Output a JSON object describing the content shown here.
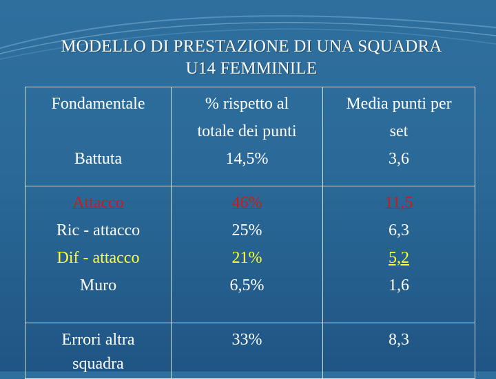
{
  "title": {
    "line1": "MODELLO DI PRESTAZIONE DI UNA SQUADRA",
    "line2": "U14 FEMMINILE"
  },
  "table": {
    "header": {
      "col1": "Fondamentale",
      "col2_line1": "% rispetto al",
      "col2_line2": "totale dei punti",
      "col3_line1": "Media punti per",
      "col3_line2": "set"
    },
    "battuta": {
      "label": "Battuta",
      "percent": "14,5%",
      "media": "3,6"
    },
    "attacco_group": [
      {
        "label": "Attacco",
        "percent": "46%",
        "media": "11,5"
      },
      {
        "label": "Ric - attacco",
        "percent": "25%",
        "media": "6,3"
      },
      {
        "label": "Dif - attacco",
        "percent": "21%",
        "media": "5,2"
      },
      {
        "label": "Muro",
        "percent": "6,5%",
        "media": "1,6"
      }
    ],
    "errori": {
      "label_line1": "Errori altra",
      "label_line2": "squadra",
      "percent": "33%",
      "media": "8,3"
    }
  },
  "colors": {
    "background": "#2b6a98",
    "highlight_red": "#d01818",
    "highlight_yellow": "#ffff33",
    "grid_lines": "#cfe0ee"
  }
}
